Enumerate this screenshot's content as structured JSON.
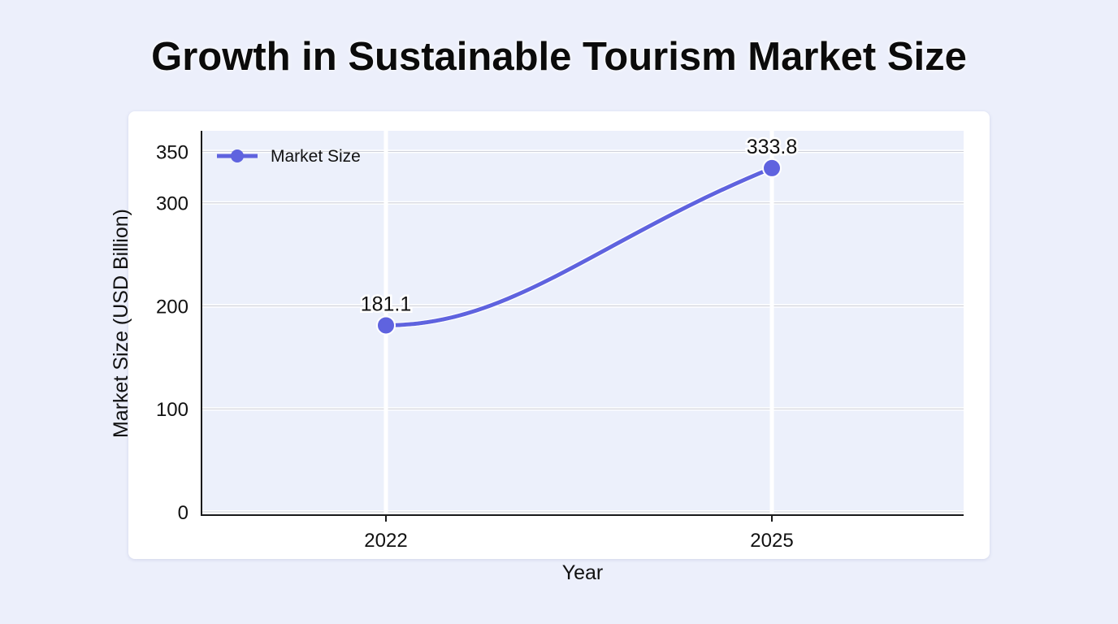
{
  "chart_data": {
    "type": "line",
    "title": "Growth in Sustainable Tourism Market Size",
    "xlabel": "Year",
    "ylabel": "Market Size (USD Billion)",
    "categories": [
      "2022",
      "2025"
    ],
    "series": [
      {
        "name": "Market Size",
        "values": [
          181.1,
          333.8
        ],
        "color": "#5f63df"
      }
    ],
    "data_labels": [
      "181.1",
      "333.8"
    ],
    "yticks": [
      0,
      100,
      200,
      300,
      350
    ],
    "ylim": [
      0,
      370
    ],
    "grid": true,
    "legend": "top-left",
    "plot_background": "#ecf0fb",
    "grid_color": "#ffffff"
  }
}
